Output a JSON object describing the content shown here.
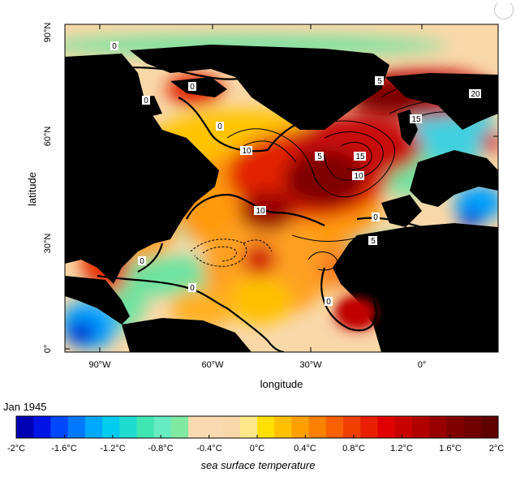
{
  "map": {
    "date_label": "Jan 1945",
    "xlabel": "longitude",
    "ylabel": "latitude",
    "lon_ticks": [
      "90°W",
      "60°W",
      "30°W",
      "0°"
    ],
    "lat_ticks": [
      "90°N",
      "60°N",
      "30°N",
      "0°"
    ],
    "colorbar_title": "sea surface temperature",
    "colorbar_ticks": [
      "-2°C",
      "-1.6°C",
      "-1.2°C",
      "-0.8°C",
      "-0.4°C",
      "0°C",
      "0.4°C",
      "0.8°C",
      "1.2°C",
      "1.6°C",
      "2°C"
    ],
    "contour_labels": [
      "0",
      "0",
      "0",
      "0",
      "5",
      "20",
      "15",
      "10",
      "5",
      "15",
      "10",
      "0",
      "10",
      "5",
      "0",
      "0",
      "0"
    ],
    "colors": {
      "land": "#000000",
      "neutral": "#f9d8a8",
      "cold_dark": "#0000c8",
      "cold": "#00a0ff",
      "cool": "#5fe3a1",
      "warm": "#f5e000",
      "orange": "#f08020",
      "hot": "#d01010",
      "hot_dark": "#7a0000"
    }
  },
  "colorbar": {
    "colors": [
      "#0000b4",
      "#0014e8",
      "#0048ff",
      "#0078ff",
      "#00a8ff",
      "#00ccf0",
      "#20dcd0",
      "#40e6b0",
      "#66ecc0",
      "#80e8a0",
      "#f9dab0",
      "#f9dab0",
      "#f8d8a8",
      "#fce888",
      "#ffe000",
      "#ffc000",
      "#ffa000",
      "#fb8000",
      "#f86000",
      "#f04000",
      "#e82000",
      "#e00000",
      "#c80000",
      "#b00000",
      "#980000",
      "#800000",
      "#700000",
      "#600000"
    ]
  }
}
